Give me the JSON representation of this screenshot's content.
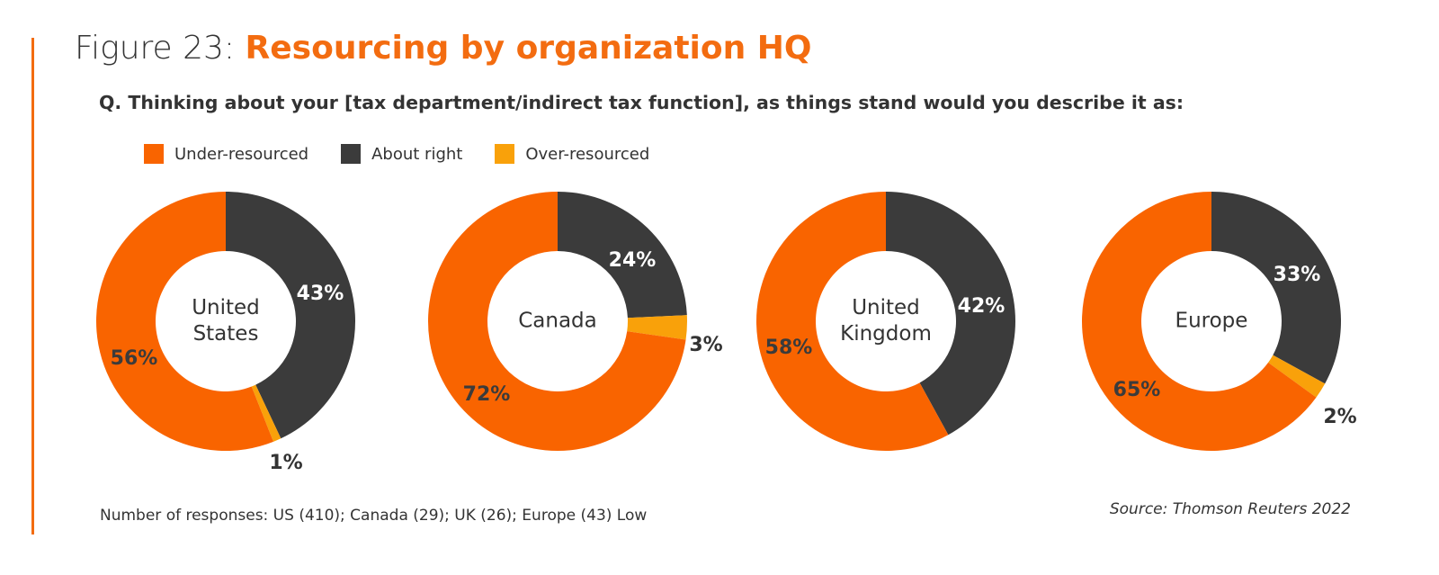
{
  "header": {
    "figure_prefix": "Figure 23:",
    "figure_title": "Resourcing by organization HQ",
    "question": "Q. Thinking about your [tax department/indirect tax function], as things stand would you describe it as:"
  },
  "colors": {
    "under": "#f96400",
    "about": "#3b3b3b",
    "over": "#f9a10a",
    "accent": "#f36c10"
  },
  "chart_data": {
    "type": "pie",
    "subtype": "donut",
    "title": "Resourcing by organization HQ",
    "legend": [
      {
        "key": "under",
        "label": "Under-resourced"
      },
      {
        "key": "about",
        "label": "About right"
      },
      {
        "key": "over",
        "label": "Over-resourced"
      }
    ],
    "charts": [
      {
        "name": "United States",
        "center_lines": [
          "United",
          "States"
        ],
        "values": {
          "about": 43,
          "over": 1,
          "under": 56
        },
        "labels": {
          "about": "43%",
          "over": "1%",
          "under": "56%"
        }
      },
      {
        "name": "Canada",
        "center_lines": [
          "Canada"
        ],
        "values": {
          "about": 24,
          "over": 3,
          "under": 72
        },
        "labels": {
          "about": "24%",
          "over": "3%",
          "under": "72%"
        }
      },
      {
        "name": "United Kingdom",
        "center_lines": [
          "United",
          "Kingdom"
        ],
        "values": {
          "about": 42,
          "over": 0,
          "under": 58
        },
        "labels": {
          "about": "42%",
          "over": "",
          "under": "58%"
        }
      },
      {
        "name": "Europe",
        "center_lines": [
          "Europe"
        ],
        "values": {
          "about": 33,
          "over": 2,
          "under": 65
        },
        "labels": {
          "about": "33%",
          "over": "2%",
          "under": "65%"
        }
      }
    ]
  },
  "footer": {
    "responses": "Number of responses: US (410); Canada (29); UK (26); Europe (43) Low",
    "source": "Source: Thomson Reuters 2022"
  }
}
